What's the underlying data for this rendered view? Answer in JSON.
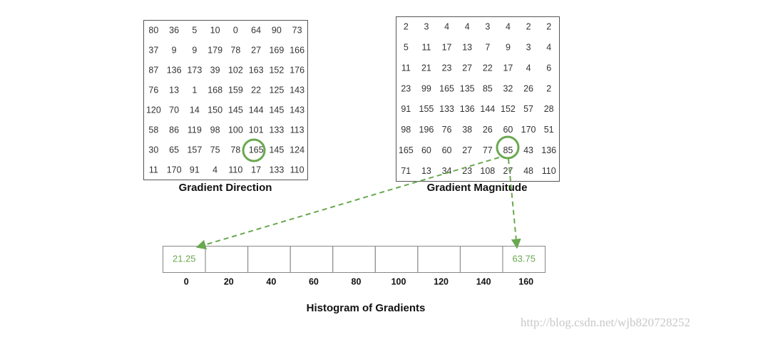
{
  "direction": {
    "title": "Gradient Direction",
    "rows": [
      [
        80,
        36,
        5,
        10,
        0,
        64,
        90,
        73
      ],
      [
        37,
        9,
        9,
        179,
        78,
        27,
        169,
        166
      ],
      [
        87,
        136,
        173,
        39,
        102,
        163,
        152,
        176
      ],
      [
        76,
        13,
        1,
        168,
        159,
        22,
        125,
        143
      ],
      [
        120,
        70,
        14,
        150,
        145,
        144,
        145,
        143
      ],
      [
        58,
        86,
        119,
        98,
        100,
        101,
        133,
        113
      ],
      [
        30,
        65,
        157,
        75,
        78,
        165,
        145,
        124
      ],
      [
        11,
        170,
        91,
        4,
        110,
        17,
        133,
        110
      ]
    ]
  },
  "magnitude": {
    "title": "Gradient Magnitude",
    "rows": [
      [
        2,
        3,
        4,
        4,
        3,
        4,
        2,
        2
      ],
      [
        5,
        11,
        17,
        13,
        7,
        9,
        3,
        4
      ],
      [
        11,
        21,
        23,
        27,
        22,
        17,
        4,
        6
      ],
      [
        23,
        99,
        165,
        135,
        85,
        32,
        26,
        2
      ],
      [
        91,
        155,
        133,
        136,
        144,
        152,
        57,
        28
      ],
      [
        98,
        196,
        76,
        38,
        26,
        60,
        170,
        51
      ],
      [
        165,
        60,
        60,
        27,
        77,
        85,
        43,
        136
      ],
      [
        71,
        13,
        34,
        23,
        108,
        27,
        48,
        110
      ]
    ]
  },
  "histogram": {
    "title": "Histogram of Gradients",
    "bins": [
      0,
      20,
      40,
      60,
      80,
      100,
      120,
      140,
      160
    ],
    "entries": [
      {
        "bin": 0,
        "value": 21.25
      },
      {
        "bin": 160,
        "value": 63.75
      }
    ]
  },
  "watermark": "http://blog.csdn.net/wjb820728252"
}
